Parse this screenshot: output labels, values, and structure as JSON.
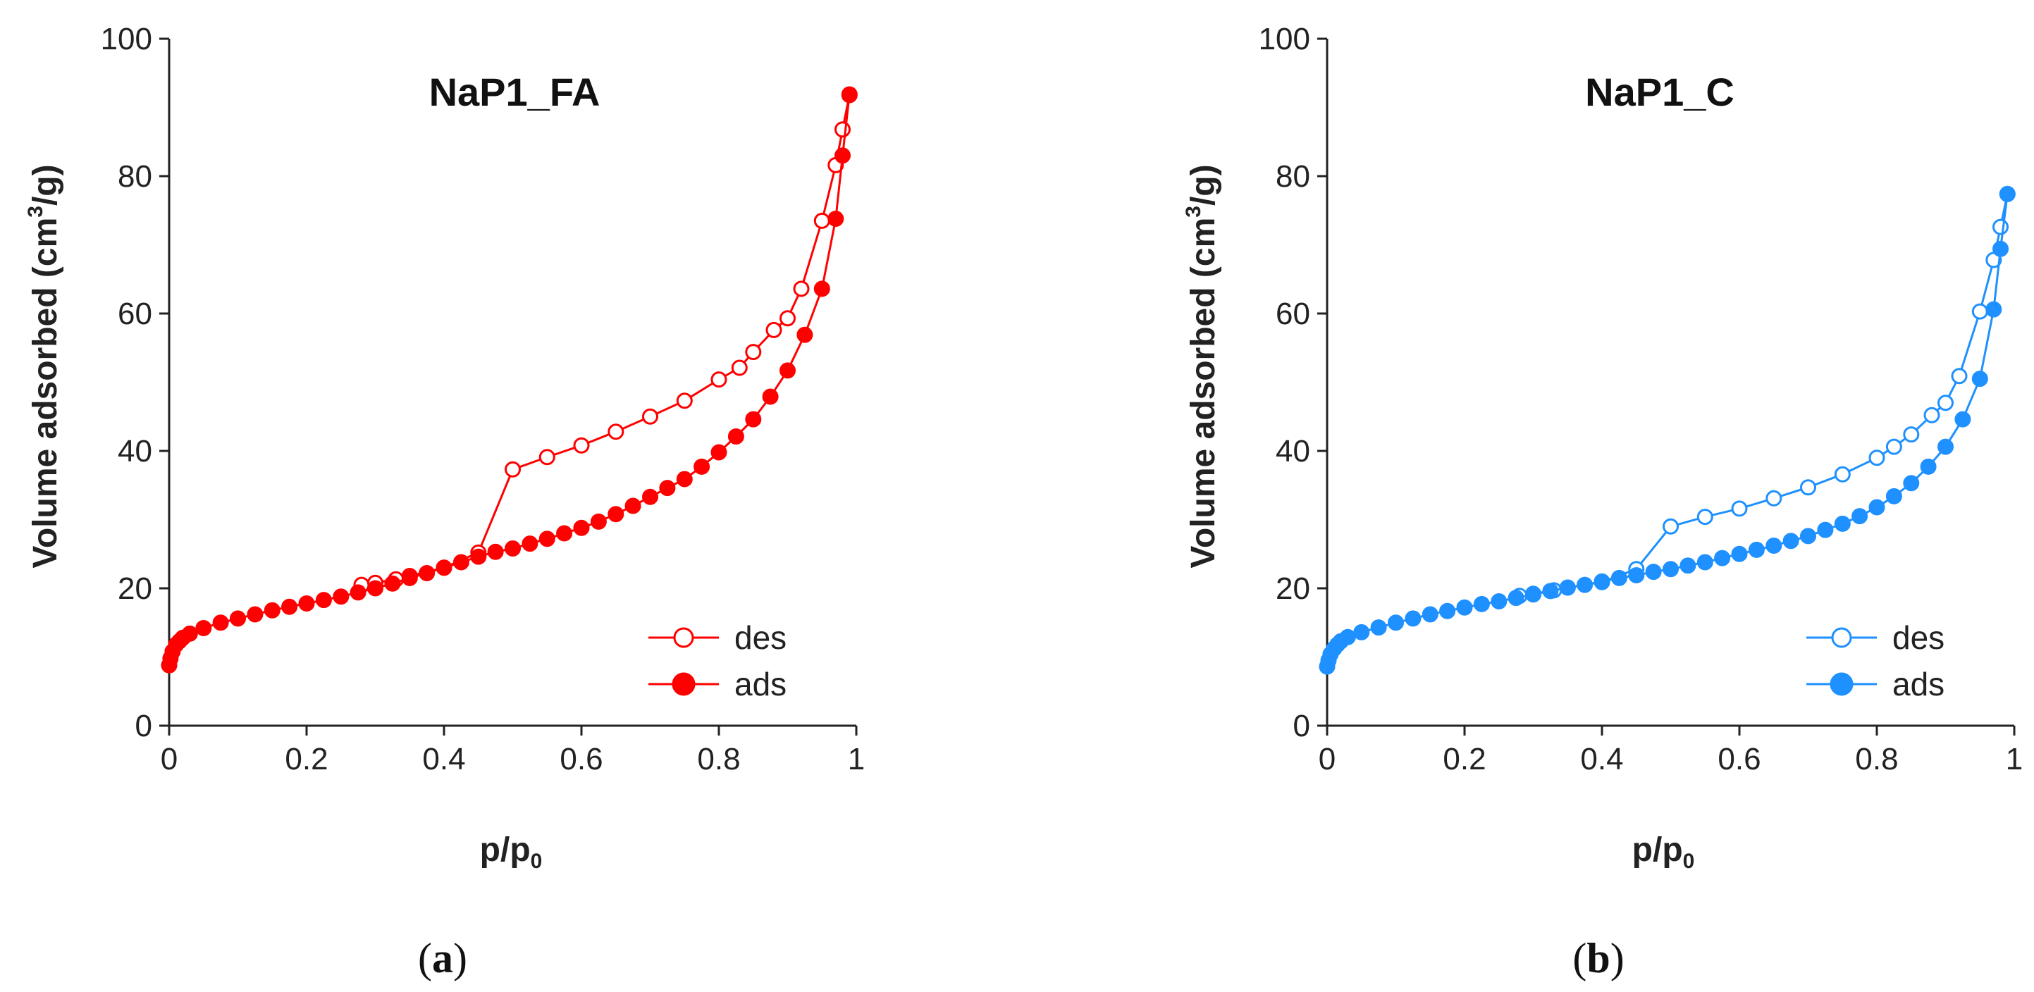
{
  "chart_data": [
    {
      "type": "line",
      "panel_label": "(a)",
      "panel_letter": "a",
      "title": "NaP1_FA",
      "xlabel": "p/p",
      "xlabel_sub": "0",
      "ylabel_pre": "Volume adsorbed (cm",
      "ylabel_sup": "3",
      "ylabel_post": "/g)",
      "xlim": [
        0,
        1
      ],
      "ylim": [
        0,
        100
      ],
      "xticks": [
        "0",
        "0.2",
        "0.4",
        "0.6",
        "0.8",
        "1"
      ],
      "yticks": [
        "0",
        "20",
        "40",
        "60",
        "80",
        "100"
      ],
      "color": "#ff0000",
      "legend_position": "bottom-right",
      "series": [
        {
          "name": "des",
          "marker": "open-circle",
          "x": [
            0.28,
            0.3,
            0.33,
            0.35,
            0.4,
            0.45,
            0.5,
            0.55,
            0.6,
            0.65,
            0.7,
            0.75,
            0.8,
            0.83,
            0.85,
            0.88,
            0.9,
            0.92,
            0.95,
            0.97,
            0.98,
            0.99
          ],
          "y": [
            20.5,
            20.8,
            21.3,
            21.8,
            23.0,
            25.2,
            37.3,
            39.1,
            40.8,
            42.8,
            45.0,
            47.3,
            50.4,
            52.1,
            54.4,
            57.6,
            59.3,
            63.6,
            73.5,
            81.6,
            86.8,
            91.8
          ]
        },
        {
          "name": "ads",
          "marker": "filled-circle",
          "x": [
            0.0,
            0.002,
            0.005,
            0.01,
            0.015,
            0.02,
            0.03,
            0.05,
            0.075,
            0.1,
            0.125,
            0.15,
            0.175,
            0.2,
            0.225,
            0.25,
            0.275,
            0.3,
            0.325,
            0.35,
            0.375,
            0.4,
            0.425,
            0.45,
            0.475,
            0.5,
            0.525,
            0.55,
            0.575,
            0.6,
            0.625,
            0.65,
            0.675,
            0.7,
            0.725,
            0.75,
            0.775,
            0.8,
            0.825,
            0.85,
            0.875,
            0.9,
            0.925,
            0.95,
            0.97,
            0.98,
            0.99
          ],
          "y": [
            8.8,
            9.8,
            10.8,
            11.8,
            12.3,
            12.8,
            13.4,
            14.2,
            15.0,
            15.6,
            16.2,
            16.8,
            17.3,
            17.8,
            18.3,
            18.8,
            19.4,
            20.0,
            20.7,
            21.5,
            22.2,
            23.0,
            23.8,
            24.6,
            25.3,
            25.8,
            26.5,
            27.2,
            28.0,
            28.8,
            29.7,
            30.8,
            32.0,
            33.3,
            34.6,
            35.9,
            37.7,
            39.8,
            42.1,
            44.6,
            47.9,
            51.7,
            56.9,
            63.6,
            73.8,
            83.0,
            91.9
          ]
        }
      ]
    },
    {
      "type": "line",
      "panel_label": "(b)",
      "panel_letter": "b",
      "title": "NaP1_C",
      "xlabel": "p/p",
      "xlabel_sub": "0",
      "ylabel_pre": "Volume adsorbed (cm",
      "ylabel_sup": "3",
      "ylabel_post": "/g)",
      "xlim": [
        0,
        1
      ],
      "ylim": [
        0,
        100
      ],
      "xticks": [
        "0",
        "0.2",
        "0.4",
        "0.6",
        "0.8",
        "1"
      ],
      "yticks": [
        "0",
        "20",
        "40",
        "60",
        "80",
        "100"
      ],
      "color": "#1e90ff",
      "legend_position": "bottom-right",
      "series": [
        {
          "name": "des",
          "marker": "open-circle",
          "x": [
            0.28,
            0.3,
            0.33,
            0.35,
            0.4,
            0.45,
            0.5,
            0.55,
            0.6,
            0.65,
            0.7,
            0.75,
            0.8,
            0.825,
            0.85,
            0.88,
            0.9,
            0.92,
            0.95,
            0.97,
            0.98,
            0.99
          ],
          "y": [
            18.9,
            19.2,
            19.7,
            20.1,
            20.9,
            22.8,
            29.0,
            30.4,
            31.6,
            33.1,
            34.7,
            36.6,
            39.0,
            40.6,
            42.4,
            45.2,
            47.0,
            50.9,
            60.3,
            67.8,
            72.6,
            77.4
          ]
        },
        {
          "name": "ads",
          "marker": "filled-circle",
          "x": [
            0.0,
            0.002,
            0.005,
            0.01,
            0.015,
            0.02,
            0.03,
            0.05,
            0.075,
            0.1,
            0.125,
            0.15,
            0.175,
            0.2,
            0.225,
            0.25,
            0.275,
            0.3,
            0.325,
            0.35,
            0.375,
            0.4,
            0.425,
            0.45,
            0.475,
            0.5,
            0.525,
            0.55,
            0.575,
            0.6,
            0.625,
            0.65,
            0.675,
            0.7,
            0.725,
            0.75,
            0.775,
            0.8,
            0.825,
            0.85,
            0.875,
            0.9,
            0.925,
            0.95,
            0.97,
            0.98,
            0.99
          ],
          "y": [
            8.6,
            9.5,
            10.4,
            11.2,
            11.8,
            12.3,
            12.9,
            13.6,
            14.3,
            15.0,
            15.6,
            16.2,
            16.7,
            17.2,
            17.7,
            18.1,
            18.6,
            19.1,
            19.6,
            20.1,
            20.5,
            21.0,
            21.5,
            21.9,
            22.4,
            22.8,
            23.3,
            23.8,
            24.4,
            25.0,
            25.6,
            26.2,
            26.9,
            27.6,
            28.5,
            29.4,
            30.5,
            31.8,
            33.4,
            35.3,
            37.7,
            40.6,
            44.6,
            50.5,
            60.6,
            69.4,
            77.4
          ]
        }
      ]
    }
  ]
}
